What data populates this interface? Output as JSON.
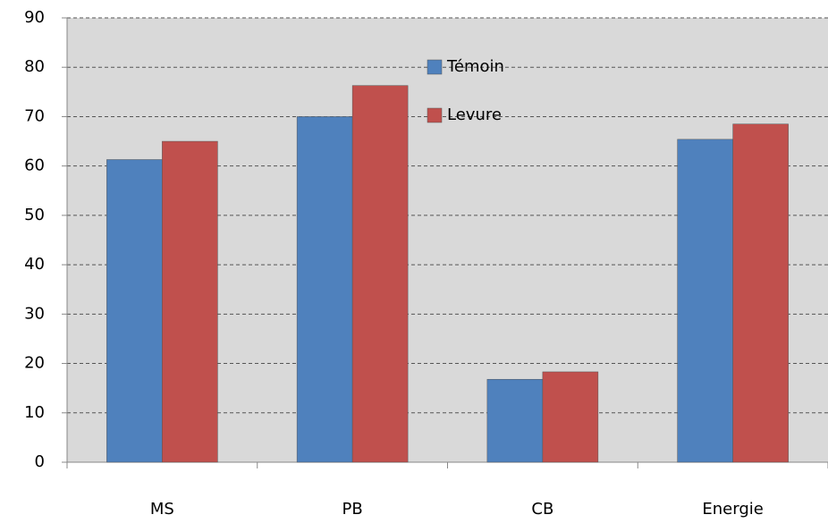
{
  "chart_data": {
    "type": "bar",
    "categories": [
      "MS",
      "PB",
      "CB",
      "Energie"
    ],
    "series": [
      {
        "name": "Témoin",
        "color": "#4f81bd",
        "values": [
          61.3,
          70,
          16.8,
          65.4
        ]
      },
      {
        "name": "Levure",
        "color": "#c0504d",
        "values": [
          65,
          76.3,
          18.3,
          68.5
        ]
      }
    ],
    "ylim": [
      0,
      90
    ],
    "yticks": [
      0,
      10,
      20,
      30,
      40,
      50,
      60,
      70,
      80,
      90
    ],
    "grid": true,
    "legend": "top"
  }
}
